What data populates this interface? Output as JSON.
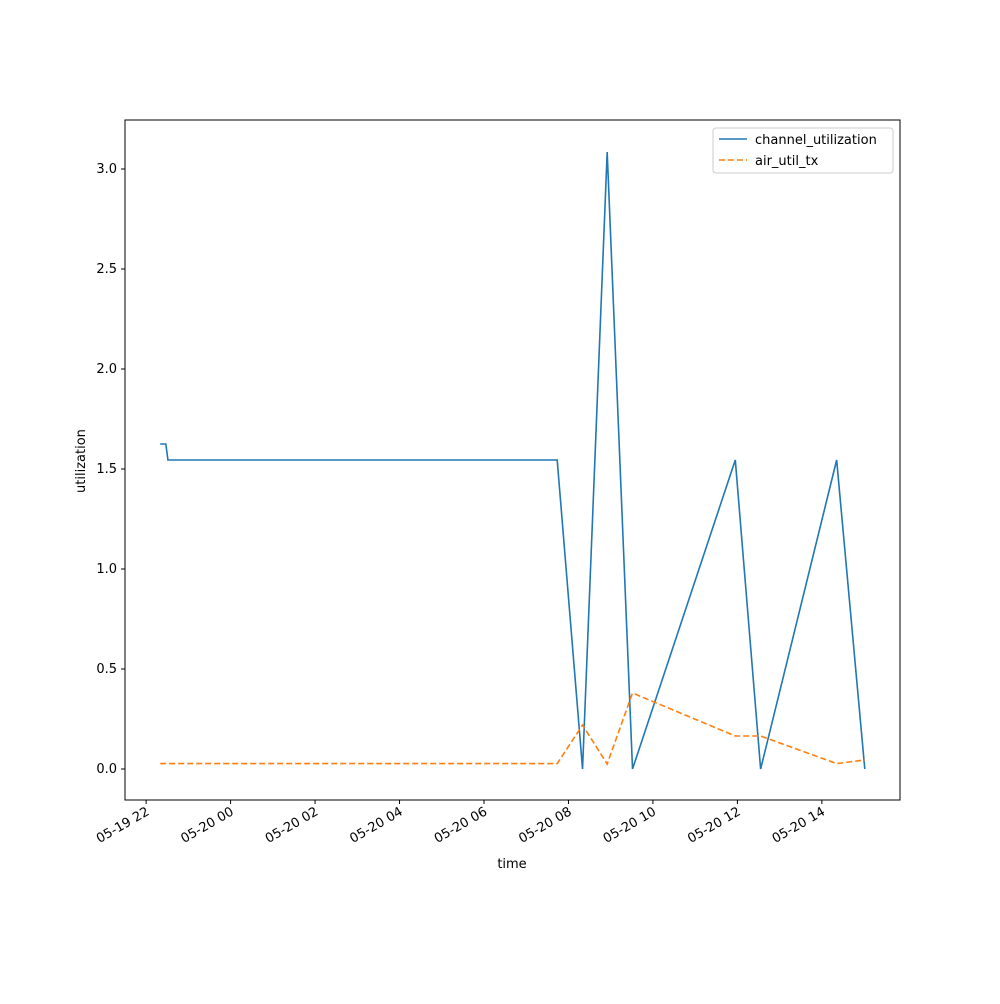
{
  "chart_data": {
    "type": "line",
    "x_label": "time",
    "y_label": "utilization",
    "series": [
      {
        "name": "channel_utilization",
        "color": "#1f77b4",
        "dash": "solid",
        "x": [
          "05-19 22:20",
          "05-19 22:28",
          "05-19 22:31",
          "05-20 07:44",
          "05-20 08:20",
          "05-20 08:55",
          "05-20 09:31",
          "05-20 11:57",
          "05-20 12:33",
          "05-20 14:21",
          "05-20 15:01"
        ],
        "values": [
          1.625,
          1.625,
          1.545,
          1.545,
          0.0,
          3.085,
          0.0,
          1.545,
          0.0,
          1.545,
          0.0
        ]
      },
      {
        "name": "air_util_tx",
        "color": "#ff7f0e",
        "dash": "dashed",
        "x": [
          "05-19 22:20",
          "05-20 07:44",
          "05-20 08:20",
          "05-20 08:55",
          "05-20 09:31",
          "05-20 11:57",
          "05-20 12:33",
          "05-20 14:21",
          "05-20 15:01"
        ],
        "values": [
          0.027,
          0.027,
          0.22,
          0.025,
          0.38,
          0.165,
          0.165,
          0.027,
          0.045
        ]
      }
    ],
    "xlim": [
      "05-19 21:30",
      "05-20 15:51"
    ],
    "xticks": [
      "05-19 22",
      "05-20 00",
      "05-20 02",
      "05-20 04",
      "05-20 06",
      "05-20 08",
      "05-20 10",
      "05-20 12",
      "05-20 14"
    ],
    "ylim": [
      -0.155,
      3.245
    ],
    "yticks": [
      {
        "value": 0,
        "label": "0.0"
      },
      0.5,
      {
        "value": 1,
        "label": "1.0"
      },
      1.5,
      {
        "value": 2,
        "label": "2.0"
      },
      2.5,
      {
        "value": 3,
        "label": "3.0"
      }
    ],
    "legend": "upper right",
    "grid": false
  }
}
